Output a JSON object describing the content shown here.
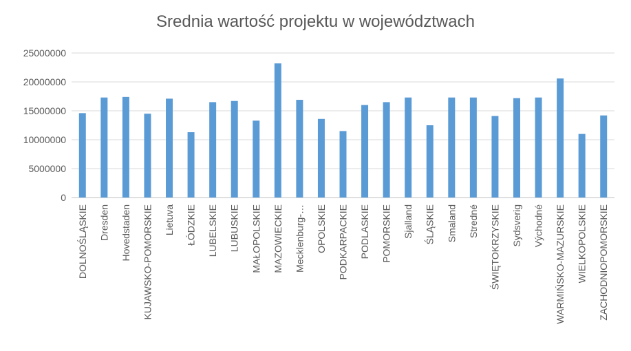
{
  "chart_data": {
    "type": "bar",
    "title": "Srednia wartość projektu w województwach",
    "xlabel": "",
    "ylabel": "",
    "ylim": [
      0,
      25000000
    ],
    "yticks": [
      "0",
      "5000000",
      "10000000",
      "15000000",
      "20000000",
      "25000000"
    ],
    "ytick_values": [
      0,
      5000000,
      10000000,
      15000000,
      20000000,
      25000000
    ],
    "grid": true,
    "legend": "none",
    "bar_color": "#5B9BD5",
    "categories": [
      "DOLNOŚLĄSKIE",
      "Dresden",
      "Hovedstaden",
      "KUJAWSKO-POMORSKIE",
      "Lietuva",
      "ŁÓDZKIE",
      "LUBELSKIE",
      "LUBUSKIE",
      "MAŁOPOLSKIE",
      "MAZOWIECKIE",
      "Mecklenburg-…",
      "OPOLSKIE",
      "PODKARPACKIE",
      "PODLASKIE",
      "POMORSKIE",
      "Sjalland",
      "ŚLĄSKIE",
      "Smaland",
      "Stredné",
      "ŚWIĘTOKRZYSKIE",
      "Sydsverig",
      "Východné",
      "WARMIŃSKO-MAZURSKIE",
      "WIELKOPOLSKIE",
      "ZACHODNIOPOMORSKIE"
    ],
    "values": [
      14600000,
      17300000,
      17400000,
      14500000,
      17100000,
      11300000,
      16500000,
      16700000,
      13300000,
      23200000,
      16900000,
      13600000,
      11500000,
      16000000,
      16500000,
      17300000,
      12500000,
      17300000,
      17300000,
      14100000,
      17200000,
      17300000,
      20600000,
      11000000,
      14200000
    ]
  }
}
